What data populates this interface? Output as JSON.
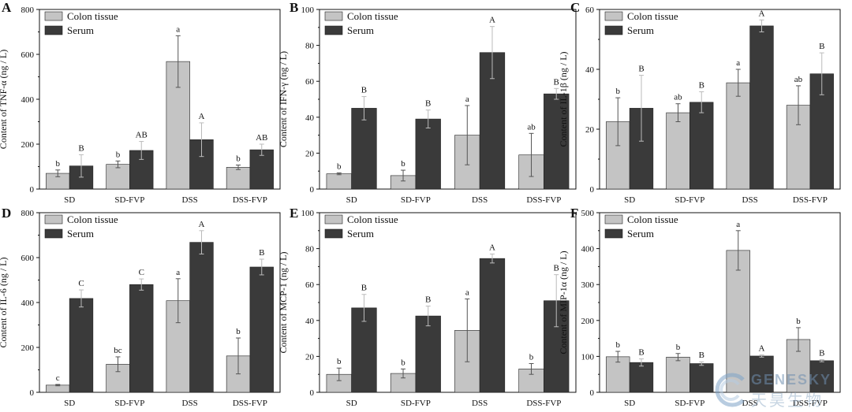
{
  "legend": {
    "colon_label": "Colon tissue",
    "serum_label": "Serum"
  },
  "colors": {
    "colon": "#c4c4c4",
    "serum": "#3a3a3a",
    "axis": "#111111"
  },
  "watermark": {
    "en": "GENESKY",
    "cn": "天昊生物"
  },
  "chart_data": [
    {
      "type": "bar",
      "panel_letter": "A",
      "ylabel": "Content of TNF-α (ng / L)",
      "categories": [
        "SD",
        "SD-FVP",
        "DSS",
        "DSS-FVP"
      ],
      "ylim": [
        0,
        800
      ],
      "yticks": [
        0,
        200,
        400,
        600,
        800
      ],
      "series": [
        {
          "name": "Colon tissue",
          "values": [
            70,
            110,
            568,
            97
          ],
          "errors": [
            15,
            15,
            115,
            10
          ],
          "labels": [
            "b",
            "b",
            "a",
            "b"
          ]
        },
        {
          "name": "Serum",
          "values": [
            103,
            172,
            220,
            175
          ],
          "errors": [
            50,
            40,
            75,
            25
          ],
          "labels": [
            "B",
            "AB",
            "A",
            "AB"
          ]
        }
      ]
    },
    {
      "type": "bar",
      "panel_letter": "B",
      "ylabel": "Content of IFN-γ (ng / L)",
      "categories": [
        "SD",
        "SD-FVP",
        "DSS",
        "DSS-FVP"
      ],
      "ylim": [
        0,
        100
      ],
      "yticks": [
        0,
        20,
        40,
        60,
        80,
        100
      ],
      "series": [
        {
          "name": "Colon tissue",
          "values": [
            8.5,
            7.5,
            30,
            19
          ],
          "errors": [
            0.5,
            3,
            16.5,
            12
          ],
          "labels": [
            "b",
            "b",
            "a",
            "ab"
          ]
        },
        {
          "name": "Serum",
          "values": [
            45,
            39,
            76,
            53
          ],
          "errors": [
            6.5,
            5,
            14.5,
            3
          ],
          "labels": [
            "B",
            "B",
            "A",
            "B"
          ]
        }
      ]
    },
    {
      "type": "bar",
      "panel_letter": "C",
      "ylabel": "Content of IL-1β (ng / L)",
      "categories": [
        "SD",
        "SD-FVP",
        "DSS",
        "DSS-FVP"
      ],
      "ylim": [
        0,
        60
      ],
      "yticks": [
        0,
        20,
        40,
        60
      ],
      "series": [
        {
          "name": "Colon tissue",
          "values": [
            22.5,
            25.5,
            35.5,
            28
          ],
          "errors": [
            8,
            3,
            4.5,
            6.5
          ],
          "labels": [
            "b",
            "ab",
            "a",
            "ab"
          ]
        },
        {
          "name": "Serum",
          "values": [
            27,
            29,
            54.5,
            38.5
          ],
          "errors": [
            11,
            3.5,
            2,
            7
          ],
          "labels": [
            "B",
            "B",
            "A",
            "B"
          ]
        }
      ]
    },
    {
      "type": "bar",
      "panel_letter": "D",
      "ylabel": "Content of IL-6 (ng / L)",
      "categories": [
        "SD",
        "SD-FVP",
        "DSS",
        "DSS-FVP"
      ],
      "ylim": [
        0,
        800
      ],
      "yticks": [
        0,
        200,
        400,
        600,
        800
      ],
      "series": [
        {
          "name": "Colon tissue",
          "values": [
            32,
            125,
            408,
            162
          ],
          "errors": [
            3,
            33,
            98,
            80
          ],
          "labels": [
            "c",
            "bc",
            "a",
            "b"
          ]
        },
        {
          "name": "Serum",
          "values": [
            418,
            480,
            668,
            558
          ],
          "errors": [
            38,
            25,
            52,
            35
          ],
          "labels": [
            "C",
            "C",
            "A",
            "B"
          ]
        }
      ]
    },
    {
      "type": "bar",
      "panel_letter": "E",
      "ylabel": "Content of MCP-1 (ng / L)",
      "categories": [
        "SD",
        "SD-FVP",
        "DSS",
        "DSS-FVP"
      ],
      "ylim": [
        0,
        100
      ],
      "yticks": [
        0,
        20,
        40,
        60,
        80,
        100
      ],
      "series": [
        {
          "name": "Colon tissue",
          "values": [
            10,
            10.5,
            34.5,
            13
          ],
          "errors": [
            3.5,
            2.5,
            17.5,
            3
          ],
          "labels": [
            "b",
            "b",
            "a",
            "b"
          ]
        },
        {
          "name": "Serum",
          "values": [
            47,
            42.5,
            74.5,
            51
          ],
          "errors": [
            7.5,
            5.5,
            2.5,
            14.5
          ],
          "labels": [
            "B",
            "B",
            "A",
            "B"
          ]
        }
      ]
    },
    {
      "type": "bar",
      "panel_letter": "F",
      "ylabel": "Content of MIP-1α (ng / L)",
      "categories": [
        "SD",
        "SD-FVP",
        "DSS",
        "DSS-FVP"
      ],
      "ylim": [
        0,
        500
      ],
      "yticks": [
        0,
        100,
        200,
        300,
        400,
        500
      ],
      "series": [
        {
          "name": "Colon tissue",
          "values": [
            99,
            98,
            395,
            147
          ],
          "errors": [
            15,
            10,
            55,
            33
          ],
          "labels": [
            "b",
            "b",
            "a",
            "b"
          ]
        },
        {
          "name": "Serum",
          "values": [
            83,
            80,
            101,
            88
          ],
          "errors": [
            10,
            5,
            3,
            3
          ],
          "labels": [
            "B",
            "B",
            "A",
            "B"
          ]
        }
      ]
    }
  ]
}
